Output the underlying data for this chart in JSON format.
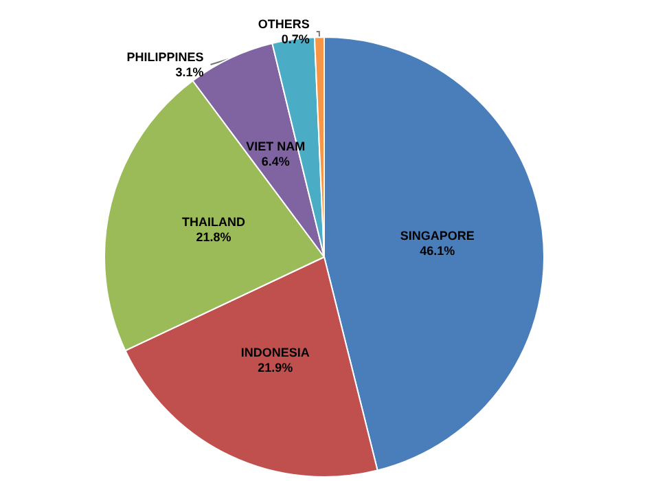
{
  "chart_data": {
    "type": "pie",
    "categories": [
      "SINGAPORE",
      "INDONESIA",
      "THAILAND",
      "VIET NAM",
      "PHILIPPINES",
      "OTHERS"
    ],
    "values": [
      46.1,
      21.9,
      21.8,
      6.4,
      3.1,
      0.7
    ],
    "value_labels": [
      "46.1%",
      "21.9%",
      "21.8%",
      "6.4%",
      "3.1%",
      "0.7%"
    ],
    "colors": [
      "#4a7ebb",
      "#c0504d",
      "#9bbb59",
      "#8064a2",
      "#4bacc6",
      "#f79646"
    ],
    "legend": false
  }
}
